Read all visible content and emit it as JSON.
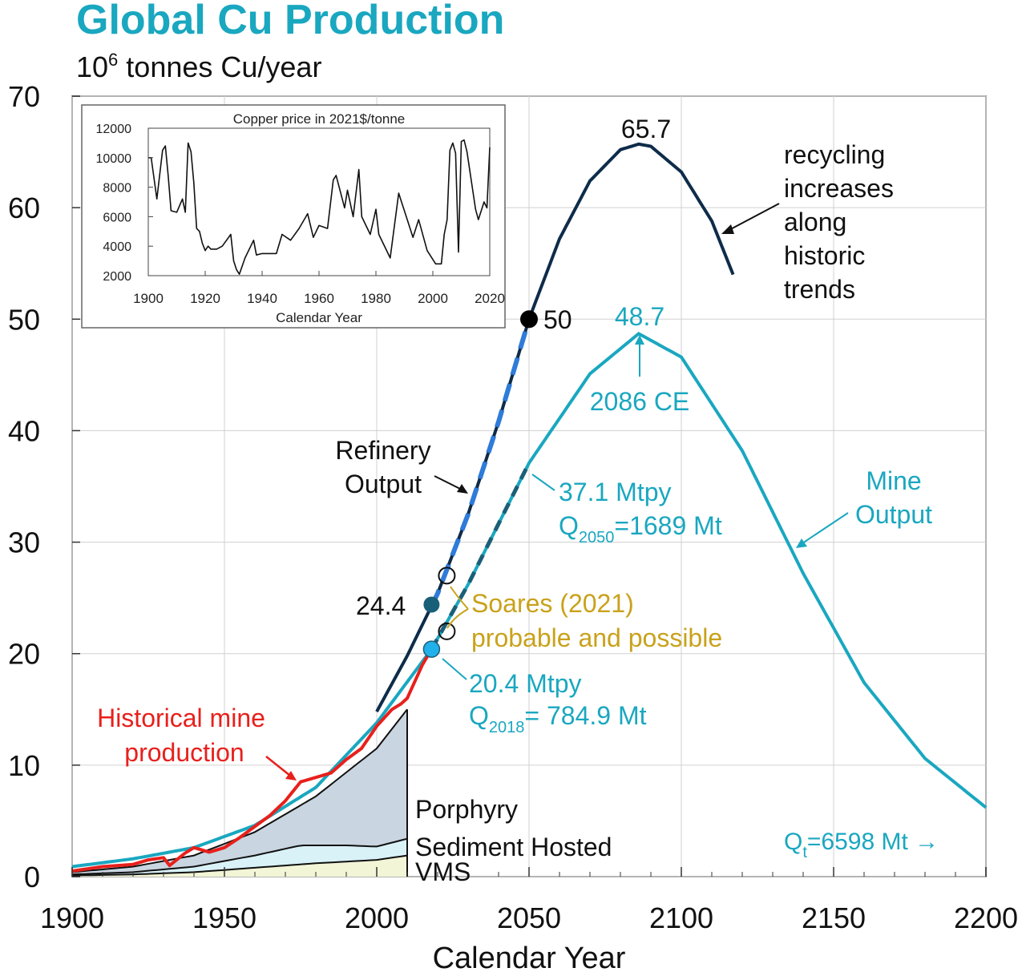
{
  "title": "Global Cu Production",
  "unit_base": "10",
  "unit_exp": "6",
  "unit_rest": " tonnes Cu/year",
  "colors": {
    "title": "#1aa7c0",
    "mine": "#1aa7c0",
    "refinery": "#0e2c4a",
    "refinery_dash": "#2f7bd9",
    "historical": "#e8201c",
    "soares": "#c9a21b",
    "porphyry": "#c9d5e0",
    "sediment": "#d9f2f8",
    "vms": "#f2f5d6",
    "grid": "#d0d0d0"
  },
  "chart_data": [
    {
      "type": "line",
      "title": "Global Cu Production",
      "xlabel": "Calendar Year",
      "ylabel": "10^6 tonnes Cu/year",
      "xlim": [
        1900,
        2200
      ],
      "ylim": [
        0,
        70
      ],
      "x_ticks": [
        1900,
        1950,
        2000,
        2050,
        2100,
        2150,
        2200
      ],
      "y_ticks": [
        0,
        10,
        20,
        30,
        40,
        50,
        60,
        70
      ],
      "grid": true,
      "series": [
        {
          "name": "Refinery Output",
          "x": [
            2000,
            2010,
            2020,
            2030,
            2040,
            2050,
            2060,
            2070,
            2080,
            2086,
            2090,
            2100,
            2110,
            2117
          ],
          "y": [
            14.8,
            19.8,
            25.4,
            32.5,
            40.8,
            50.0,
            57.2,
            62.4,
            65.2,
            65.7,
            65.5,
            63.2,
            58.8,
            54.0
          ]
        },
        {
          "name": "Mine Output",
          "x": [
            1900,
            1920,
            1940,
            1960,
            1980,
            2000,
            2018,
            2030,
            2050,
            2070,
            2086,
            2100,
            2120,
            2140,
            2160,
            2180,
            2200
          ],
          "y": [
            0.9,
            1.6,
            2.6,
            4.6,
            8.0,
            13.8,
            20.4,
            26.2,
            37.1,
            45.1,
            48.7,
            46.6,
            38.2,
            27.2,
            17.4,
            10.6,
            6.2
          ]
        },
        {
          "name": "Historical mine production",
          "x": [
            1900,
            1910,
            1920,
            1925,
            1930,
            1932,
            1937,
            1940,
            1945,
            1950,
            1955,
            1960,
            1965,
            1970,
            1975,
            1980,
            1985,
            1990,
            1995,
            2000,
            2005,
            2008,
            2010,
            2015,
            2018
          ],
          "y": [
            0.5,
            0.9,
            1.1,
            1.5,
            1.7,
            1.0,
            2.1,
            2.6,
            2.2,
            2.6,
            3.5,
            4.5,
            5.5,
            6.8,
            8.5,
            8.9,
            9.3,
            10.5,
            11.5,
            13.5,
            15.0,
            15.5,
            16.0,
            19.0,
            20.4
          ]
        }
      ],
      "areas": [
        {
          "name": "Porphyry",
          "x": [
            1900,
            1920,
            1940,
            1960,
            1980,
            2000,
            2010
          ],
          "y": [
            0.4,
            0.9,
            1.9,
            4.0,
            7.2,
            11.5,
            15.0
          ]
        },
        {
          "name": "Sediment Hosted",
          "x": [
            1900,
            1920,
            1940,
            1960,
            1975,
            1990,
            2000,
            2010
          ],
          "y": [
            0.2,
            0.4,
            0.9,
            1.9,
            2.8,
            2.8,
            2.7,
            3.4
          ]
        },
        {
          "name": "VMS",
          "x": [
            1900,
            1920,
            1940,
            1960,
            1980,
            2000,
            2010
          ],
          "y": [
            0.1,
            0.2,
            0.4,
            0.8,
            1.2,
            1.5,
            1.9
          ]
        }
      ],
      "markers": [
        {
          "label": "24.4",
          "x": 2018,
          "y": 24.4
        },
        {
          "label": "50",
          "x": 2050,
          "y": 50.0
        },
        {
          "label": "",
          "x": 2018,
          "y": 20.4
        },
        {
          "label": "",
          "x": 2023,
          "y": 27.0
        },
        {
          "label": "",
          "x": 2023,
          "y": 22.0
        }
      ],
      "annotations": [
        {
          "text": "65.7"
        },
        {
          "text": "48.7"
        },
        {
          "text": "2086 CE"
        },
        {
          "lines": [
            "recycling",
            "increases",
            "along",
            "historic",
            "trends"
          ]
        },
        {
          "lines": [
            "Refinery",
            "Output"
          ]
        },
        {
          "lines": [
            "Mine",
            "Output"
          ]
        },
        {
          "lines": [
            "37.1 Mtpy",
            "Q",
            "2050",
            "=1689 Mt"
          ]
        },
        {
          "lines": [
            "20.4 Mtpy",
            "Q",
            "2018",
            "= 784.9 Mt"
          ]
        },
        {
          "lines": [
            "Soares (2021)",
            "probable and possible"
          ]
        },
        {
          "lines": [
            "Historical mine",
            "production"
          ]
        },
        {
          "text": "Porphyry"
        },
        {
          "text": "Sediment Hosted"
        },
        {
          "text": "VMS"
        },
        {
          "lines": [
            "Q",
            "t",
            "=6598 Mt →"
          ]
        }
      ]
    },
    {
      "type": "line",
      "title": "Copper price in 2021$/tonne",
      "xlabel": "Calendar Year",
      "ylabel": "",
      "xlim": [
        1900,
        2020
      ],
      "ylim": [
        2000,
        12000
      ],
      "x_ticks": [
        1900,
        1920,
        1940,
        1960,
        1980,
        2000,
        2020
      ],
      "y_ticks": [
        2000,
        4000,
        6000,
        8000,
        10000,
        12000
      ],
      "series": [
        {
          "name": "",
          "x": [
            1900,
            1901,
            1903,
            1905,
            1906,
            1907,
            1908,
            1910,
            1912,
            1913,
            1914,
            1915,
            1916,
            1917,
            1918,
            1919,
            1920,
            1921,
            1922,
            1924,
            1926,
            1929,
            1930,
            1931,
            1932,
            1934,
            1937,
            1938,
            1940,
            1942,
            1945,
            1947,
            1950,
            1953,
            1956,
            1958,
            1960,
            1963,
            1965,
            1966,
            1969,
            1970,
            1972,
            1974,
            1975,
            1978,
            1980,
            1981,
            1985,
            1988,
            1989,
            1990,
            1993,
            1995,
            1998,
            2001,
            2003,
            2004,
            2005,
            2006,
            2007,
            2008,
            2009,
            2010,
            2011,
            2012,
            2015,
            2016,
            2018,
            2019,
            2020
          ],
          "y": [
            10000,
            10000,
            7200,
            10500,
            10800,
            8800,
            6400,
            6300,
            7200,
            6300,
            11000,
            10400,
            8300,
            5200,
            5000,
            4200,
            3700,
            4000,
            3800,
            3800,
            4000,
            4800,
            3000,
            2400,
            2100,
            3200,
            4400,
            3400,
            3500,
            3500,
            3500,
            4800,
            4400,
            5200,
            6200,
            4600,
            5400,
            5200,
            8500,
            8800,
            6600,
            7800,
            6000,
            9200,
            6000,
            4800,
            6500,
            4800,
            3200,
            7600,
            7000,
            6400,
            4600,
            5800,
            3700,
            2800,
            2800,
            4800,
            5800,
            10500,
            11000,
            10300,
            3600,
            11100,
            11200,
            10400,
            6500,
            5800,
            7000,
            6600,
            10700
          ]
        }
      ]
    }
  ]
}
